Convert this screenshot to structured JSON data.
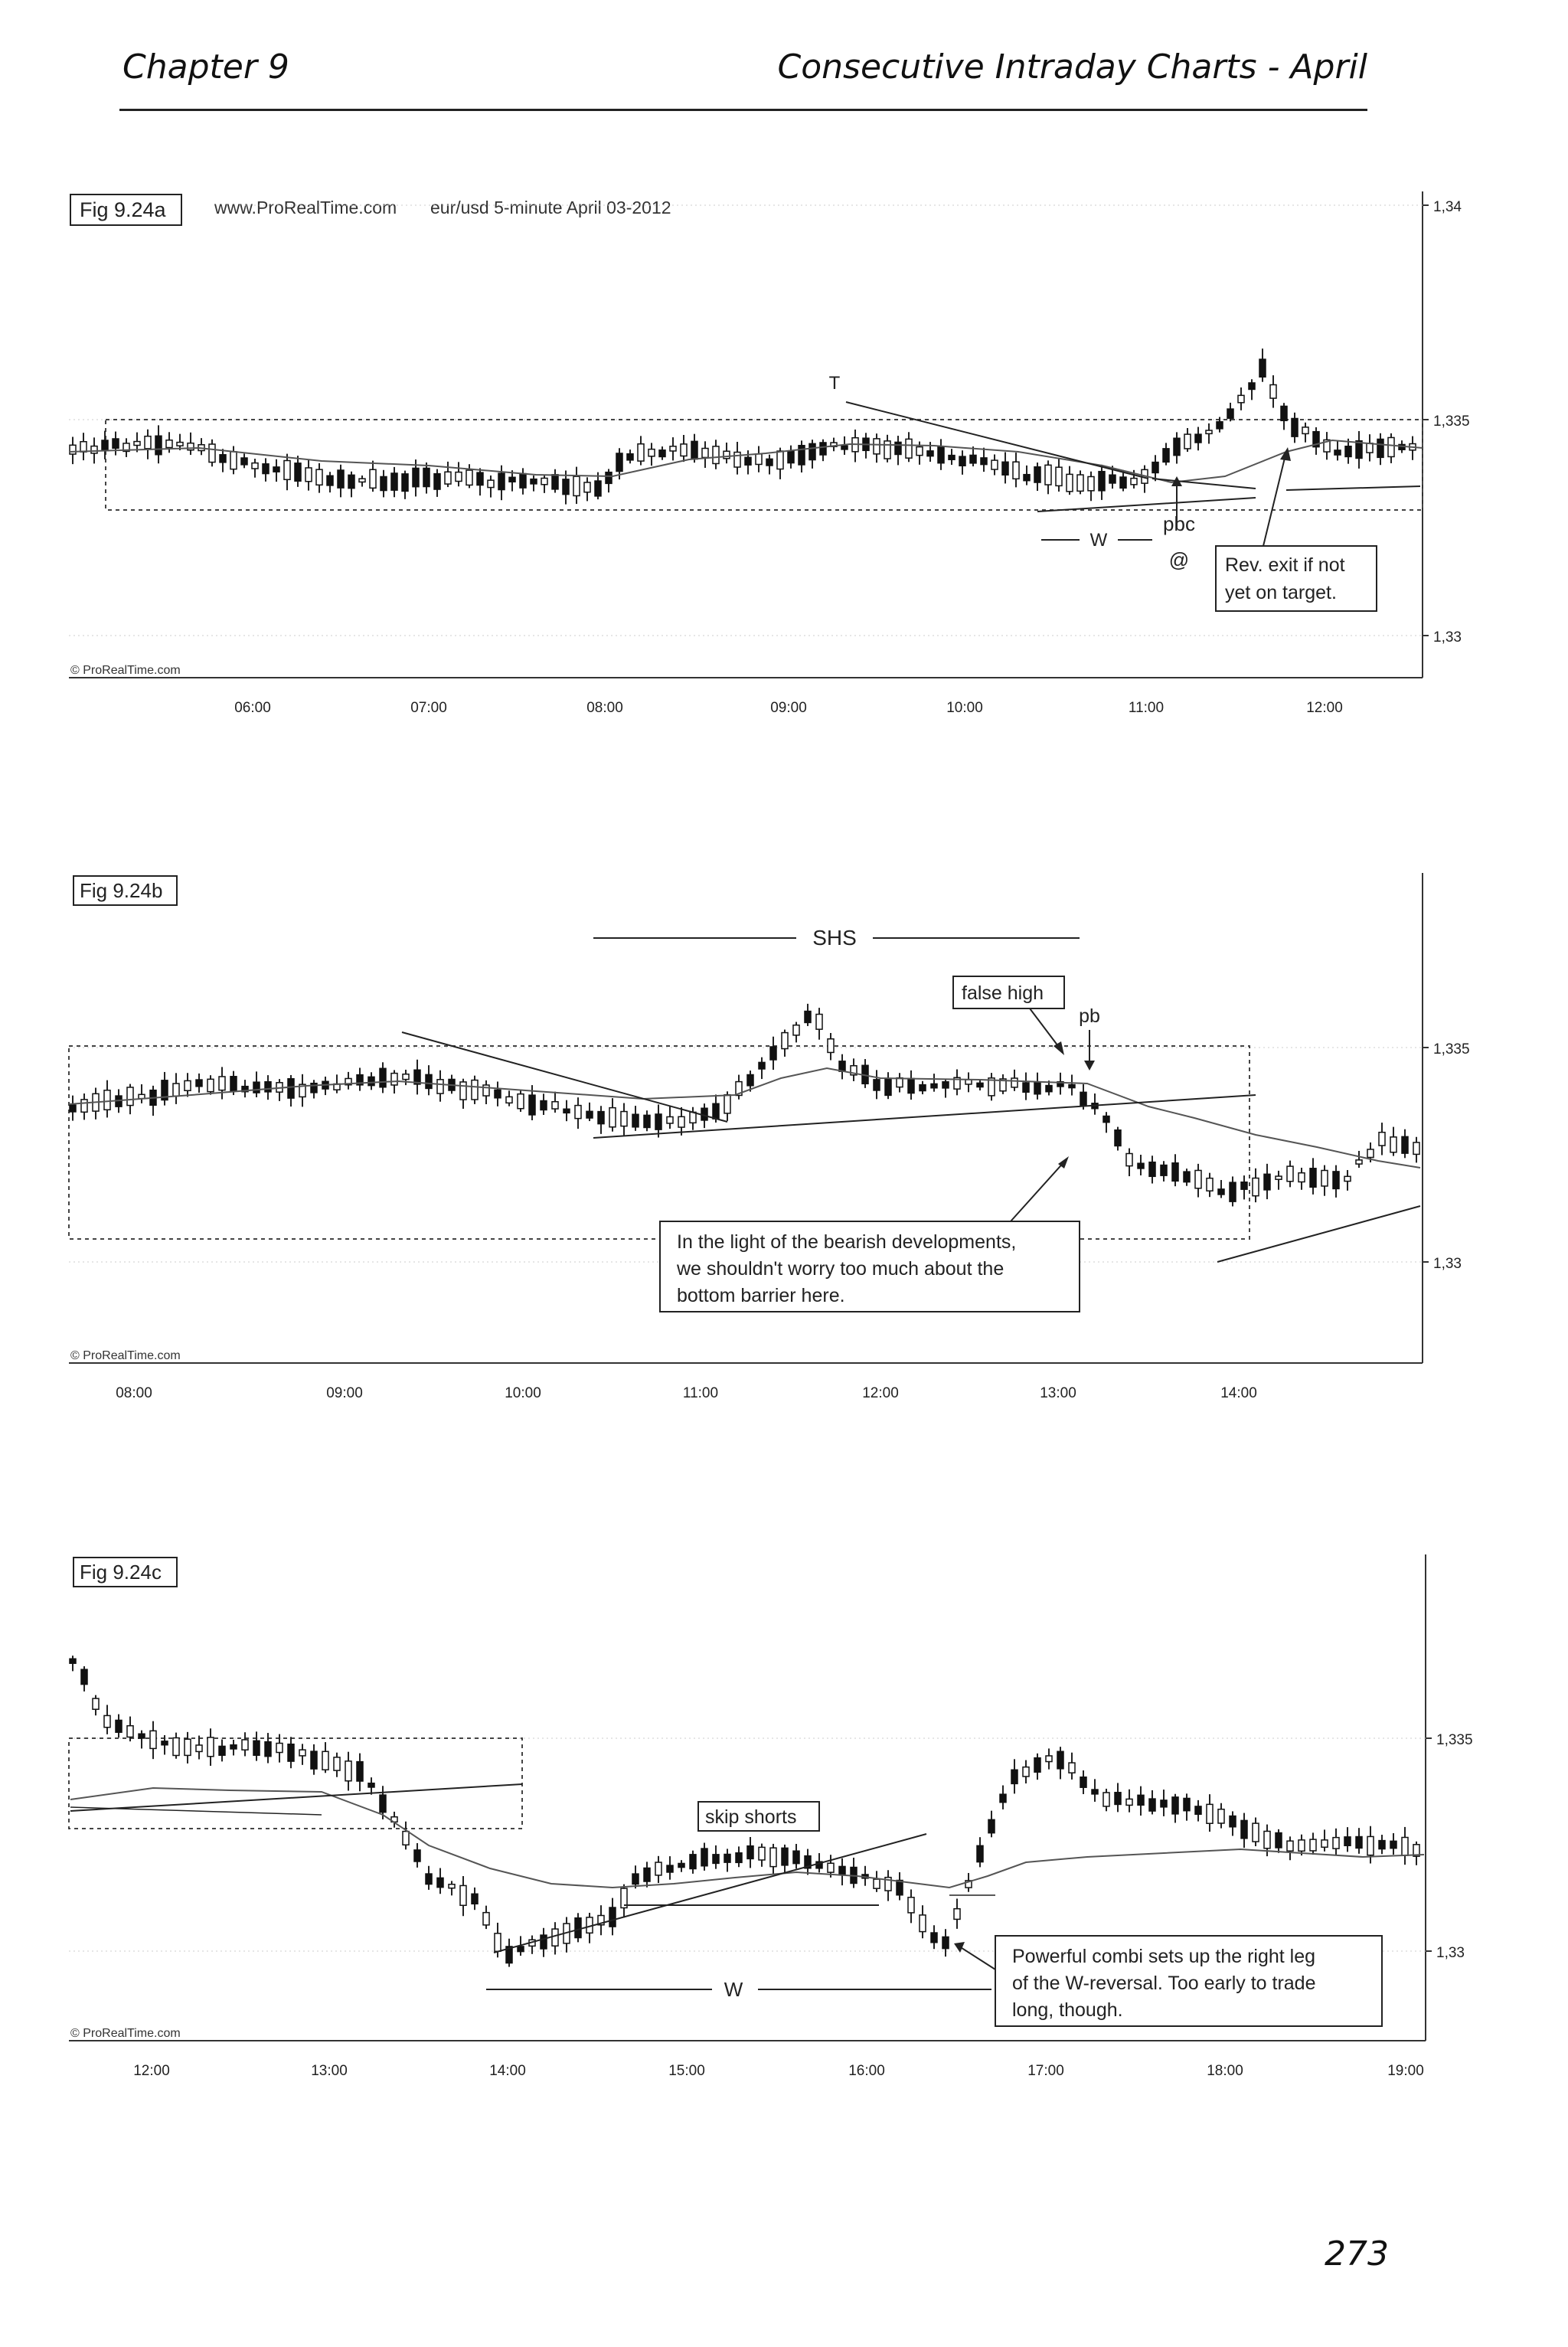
{
  "header": {
    "chapter": "Chapter 9",
    "title": "Consecutive Intraday Charts - April"
  },
  "page_number": "273",
  "figures": [
    {
      "id": "a",
      "label": "Fig 9.24a",
      "source": "www.ProRealTime.com",
      "subtitle": "eur/usd 5-minute April 03-2012",
      "watermark": "© ProRealTime.com",
      "y_ticks": [
        "1,34",
        "1,335",
        "1,33"
      ],
      "x_ticks": [
        "06:00",
        "07:00",
        "08:00",
        "09:00",
        "10:00",
        "11:00",
        "12:00"
      ],
      "annotations": {
        "t": "T",
        "w": "W",
        "pbc": "pbc",
        "at": "@",
        "box": [
          "Rev. exit if not",
          "yet on target."
        ]
      }
    },
    {
      "id": "b",
      "label": "Fig 9.24b",
      "watermark": "© ProRealTime.com",
      "y_ticks": [
        "1,335",
        "1,33"
      ],
      "x_ticks": [
        "08:00",
        "09:00",
        "10:00",
        "11:00",
        "12:00",
        "13:00",
        "14:00"
      ],
      "annotations": {
        "shs": "SHS",
        "false_high": "false high",
        "pb": "pb",
        "box": [
          "In the light of the bearish developments,",
          "we shouldn't worry too much about the",
          "bottom barrier here."
        ]
      }
    },
    {
      "id": "c",
      "label": "Fig 9.24c",
      "watermark": "© ProRealTime.com",
      "y_ticks": [
        "1,335",
        "1,33"
      ],
      "x_ticks": [
        "12:00",
        "13:00",
        "14:00",
        "15:00",
        "16:00",
        "17:00",
        "18:00",
        "19:00"
      ],
      "annotations": {
        "skip": "skip shorts",
        "w": "W",
        "box": [
          "Powerful combi sets up the right leg",
          "of the W-reversal. Too early to trade",
          "long, though."
        ]
      }
    }
  ]
}
